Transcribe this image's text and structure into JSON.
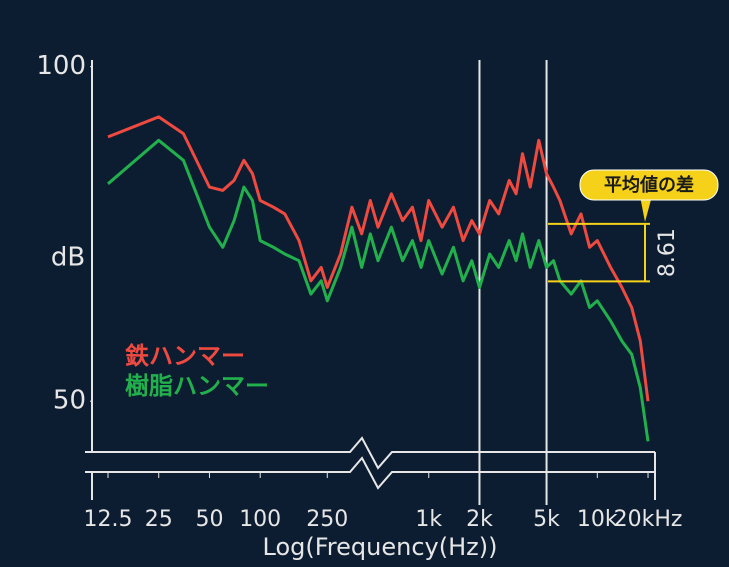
{
  "chart_data": {
    "type": "line",
    "y_label": "dB",
    "x_label": "Log(Frequency(Hz))",
    "x_scale": "log",
    "xlim": [
      12,
      22000
    ],
    "ylim": [
      43,
      101
    ],
    "xticks": [
      12.5,
      25,
      50,
      100,
      250,
      {
        "value": 1000,
        "label": "1k"
      },
      {
        "value": 2000,
        "label": "2k"
      },
      {
        "value": 5000,
        "label": "5k"
      },
      {
        "value": 10000,
        "label": "10k"
      },
      {
        "value": 20000,
        "label": "20kHz"
      }
    ],
    "yticks": [
      50,
      100
    ],
    "x": [
      12.5,
      25,
      35,
      50,
      60,
      70,
      80,
      90,
      100,
      120,
      140,
      170,
      200,
      230,
      250,
      300,
      350,
      400,
      450,
      500,
      600,
      700,
      800,
      900,
      1000,
      1200,
      1400,
      1600,
      1800,
      2000,
      2300,
      2600,
      3000,
      3300,
      3600,
      4000,
      4500,
      5000,
      5500,
      6000,
      7000,
      8000,
      9000,
      10000,
      12000,
      14000,
      16000,
      18000,
      20000
    ],
    "series": [
      {
        "name": "鉄ハンマー",
        "color": "#ee4a40",
        "values": [
          89.5,
          92.5,
          90,
          82,
          81.5,
          83,
          86,
          84,
          80,
          79,
          78,
          74,
          68,
          70,
          67,
          72,
          79,
          75,
          80,
          76,
          81,
          77,
          79,
          74,
          80,
          76,
          79,
          74,
          77,
          75,
          80,
          78,
          83,
          81,
          87,
          82,
          89,
          84,
          82,
          80,
          75,
          78,
          73,
          74,
          70,
          67,
          64,
          59,
          50
        ]
      },
      {
        "name": "樹脂ハンマー",
        "color": "#22b04c",
        "values": [
          82.5,
          89,
          86,
          76,
          73,
          77,
          82,
          80,
          74,
          73,
          72,
          71,
          66,
          68,
          65,
          70,
          76,
          70,
          75,
          71,
          76,
          71,
          74,
          70,
          74,
          69,
          73,
          68,
          71,
          67,
          72,
          70,
          74,
          71,
          75,
          70,
          74,
          70,
          71,
          68,
          66,
          68,
          64,
          65,
          62,
          59,
          57,
          52,
          44
        ]
      }
    ],
    "band_lines": [
      2000,
      5000
    ],
    "mean_levels": [
      76.5,
      67.9
    ],
    "annotation": {
      "label": "平均値の差",
      "value_label": "8.61"
    }
  }
}
